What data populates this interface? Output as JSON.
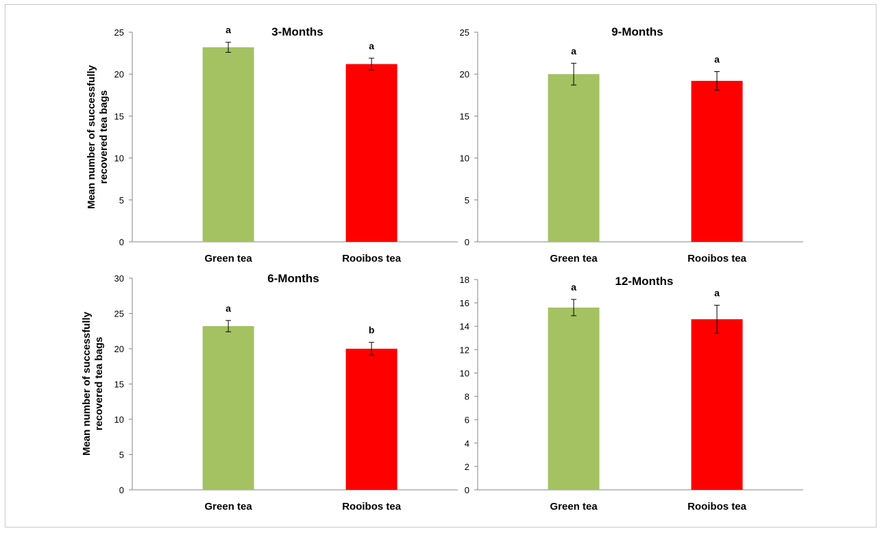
{
  "chart_data": [
    {
      "type": "bar",
      "title": "3-Months",
      "categories": [
        "Green tea",
        "Rooibos tea"
      ],
      "values": [
        23.2,
        21.2
      ],
      "errors": [
        0.6,
        0.7
      ],
      "significance": [
        "a",
        "a"
      ],
      "colors": [
        "#a4c262",
        "#ff0000"
      ],
      "ylabel": [
        "Mean number of successfully",
        "recovered tea bags"
      ],
      "ylim": [
        0,
        25
      ],
      "yticks": [
        0,
        5,
        10,
        15,
        20,
        25
      ],
      "grid": false
    },
    {
      "type": "bar",
      "title": "9-Months",
      "categories": [
        "Green tea",
        "Rooibos tea"
      ],
      "values": [
        20.0,
        19.2
      ],
      "errors": [
        1.3,
        1.1
      ],
      "significance": [
        "a",
        "a"
      ],
      "colors": [
        "#a4c262",
        "#ff0000"
      ],
      "ylabel": [],
      "ylim": [
        0,
        25
      ],
      "yticks": [
        0,
        5,
        10,
        15,
        20,
        25
      ],
      "grid": false
    },
    {
      "type": "bar",
      "title": "6-Months",
      "categories": [
        "Green tea",
        "Rooibos tea"
      ],
      "values": [
        23.2,
        20.0
      ],
      "errors": [
        0.8,
        0.9
      ],
      "significance": [
        "a",
        "b"
      ],
      "colors": [
        "#a4c262",
        "#ff0000"
      ],
      "ylabel": [
        "Mean number of successfully",
        "recovered tea bags"
      ],
      "ylim": [
        0,
        30
      ],
      "yticks": [
        0,
        5,
        10,
        15,
        20,
        25,
        30
      ],
      "grid": false
    },
    {
      "type": "bar",
      "title": "12-Months",
      "categories": [
        "Green tea",
        "Rooibos tea"
      ],
      "values": [
        15.6,
        14.6
      ],
      "errors": [
        0.7,
        1.2
      ],
      "significance": [
        "a",
        "a"
      ],
      "colors": [
        "#a4c262",
        "#ff0000"
      ],
      "ylabel": [],
      "ylim": [
        0,
        18
      ],
      "yticks": [
        0,
        2,
        4,
        6,
        8,
        10,
        12,
        14,
        16,
        18
      ],
      "grid": false
    }
  ]
}
